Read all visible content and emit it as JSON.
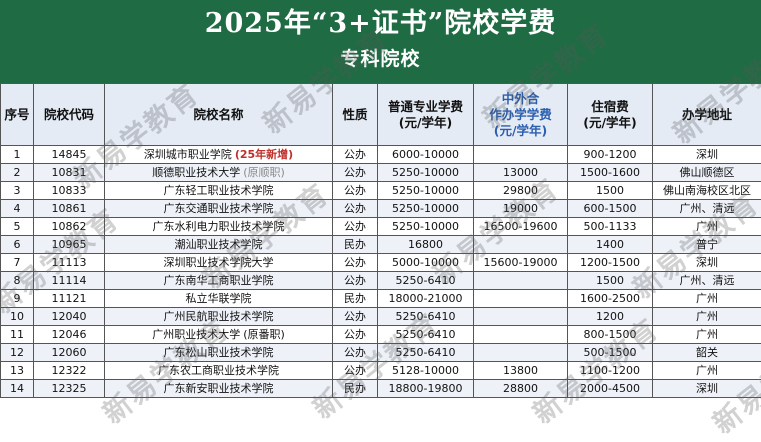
{
  "header": {
    "title": "2025年“3+证书”院校学费",
    "subtitle": "专科院校"
  },
  "colors": {
    "banner": "#1f6b43",
    "header_bg": "#e4ebf5",
    "accent_blue": "#2a5fb0",
    "badge_red": "#c0302b"
  },
  "watermark": "新易学教育",
  "table": {
    "headers": {
      "no": "序号",
      "code": "院校代码",
      "name": "院校名称",
      "type": "性质",
      "fee1": "普通专业学费",
      "fee1_unit": "(元/学年)",
      "fee2_a": "中外合",
      "fee2_b": "作办学学费",
      "fee2_unit": "(元/学年)",
      "dorm": "住宿费",
      "dorm_unit": "(元/学年)",
      "addr": "办学地址"
    },
    "rows": [
      {
        "no": "1",
        "code": "14845",
        "name": "深圳城市职业学院",
        "note": "(25年新增)",
        "note_style": "badge",
        "type": "公办",
        "fee1": "6000-10000",
        "fee2": "",
        "dorm": "900-1200",
        "addr": "深圳"
      },
      {
        "no": "2",
        "code": "10831",
        "name": "顺德职业技术大学",
        "note": "(原顺职)",
        "note_style": "paren",
        "type": "公办",
        "fee1": "5250-10000",
        "fee2": "13000",
        "dorm": "1500-1600",
        "addr": "佛山顺德区"
      },
      {
        "no": "3",
        "code": "10833",
        "name": "广东轻工职业技术学院",
        "note": "",
        "note_style": "",
        "type": "公办",
        "fee1": "5250-10000",
        "fee2": "29800",
        "dorm": "1500",
        "addr": "佛山南海校区北区"
      },
      {
        "no": "4",
        "code": "10861",
        "name": "广东交通职业技术学院",
        "note": "",
        "note_style": "",
        "type": "公办",
        "fee1": "5250-10000",
        "fee2": "19000",
        "dorm": "600-1500",
        "addr": "广州、清远"
      },
      {
        "no": "5",
        "code": "10862",
        "name": "广东水利电力职业技术学院",
        "note": "",
        "note_style": "",
        "type": "公办",
        "fee1": "5250-10000",
        "fee2": "16500-19600",
        "dorm": "500-1133",
        "addr": "广州"
      },
      {
        "no": "6",
        "code": "10965",
        "name": "潮汕职业技术学院",
        "note": "",
        "note_style": "",
        "type": "民办",
        "fee1": "16800",
        "fee2": "",
        "dorm": "1400",
        "addr": "普宁"
      },
      {
        "no": "7",
        "code": "11113",
        "name": "深圳职业技术学院大学",
        "note": "",
        "note_style": "",
        "type": "公办",
        "fee1": "5000-10000",
        "fee2": "15600-19000",
        "dorm": "1200-1500",
        "addr": "深圳"
      },
      {
        "no": "8",
        "code": "11114",
        "name": "广东南华工商职业学院",
        "note": "",
        "note_style": "",
        "type": "公办",
        "fee1": "5250-6410",
        "fee2": "",
        "dorm": "1500",
        "addr": "广州、清远"
      },
      {
        "no": "9",
        "code": "11121",
        "name": "私立华联学院",
        "note": "",
        "note_style": "",
        "type": "民办",
        "fee1": "18000-21000",
        "fee2": "",
        "dorm": "1600-2500",
        "addr": "广州"
      },
      {
        "no": "10",
        "code": "12040",
        "name": "广州民航职业技术学院",
        "note": "",
        "note_style": "",
        "type": "公办",
        "fee1": "5250-6410",
        "fee2": "",
        "dorm": "1200",
        "addr": "广州"
      },
      {
        "no": "11",
        "code": "12046",
        "name": "广州职业技术大学",
        "note": "(原番职)",
        "note_style": "plain",
        "type": "公办",
        "fee1": "5250-6410",
        "fee2": "",
        "dorm": "800-1500",
        "addr": "广州"
      },
      {
        "no": "12",
        "code": "12060",
        "name": "广东松山职业技术学院",
        "note": "",
        "note_style": "",
        "type": "公办",
        "fee1": "5250-6410",
        "fee2": "",
        "dorm": "500-1500",
        "addr": "韶关"
      },
      {
        "no": "13",
        "code": "12322",
        "name": "广东农工商职业技术学院",
        "note": "",
        "note_style": "",
        "type": "公办",
        "fee1": "5128-10000",
        "fee2": "13800",
        "dorm": "1100-1200",
        "addr": "广州"
      },
      {
        "no": "14",
        "code": "12325",
        "name": "广东新安职业技术学院",
        "note": "",
        "note_style": "",
        "type": "民办",
        "fee1": "18800-19800",
        "fee2": "28800",
        "dorm": "2000-4500",
        "addr": "深圳"
      }
    ]
  }
}
